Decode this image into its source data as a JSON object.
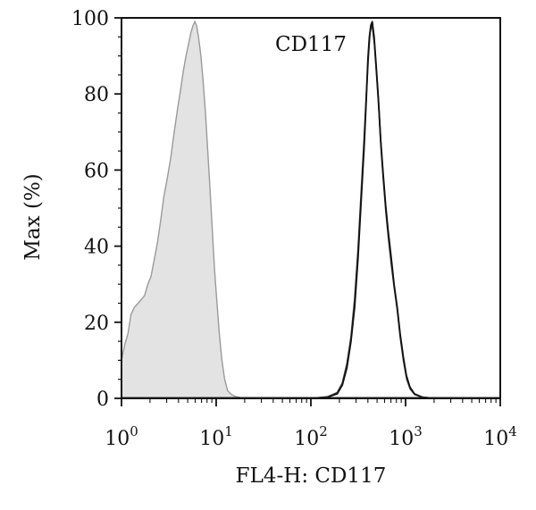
{
  "chart_data": {
    "type": "area",
    "title": "",
    "annotation": "CD117",
    "xlabel": "FL4-H: CD117",
    "ylabel": "Max (%)",
    "xscale": "log",
    "xlim": [
      1,
      10000
    ],
    "ylim": [
      0,
      100
    ],
    "x_ticks": [
      {
        "value": 1,
        "base": "10",
        "exp": "0"
      },
      {
        "value": 10,
        "base": "10",
        "exp": "1"
      },
      {
        "value": 100,
        "base": "10",
        "exp": "2"
      },
      {
        "value": 1000,
        "base": "10",
        "exp": "3"
      },
      {
        "value": 10000,
        "base": "10",
        "exp": "4"
      }
    ],
    "y_ticks": [
      "0",
      "20",
      "40",
      "60",
      "80",
      "100"
    ],
    "grid": false,
    "legend": "none",
    "series": [
      {
        "style": "filled",
        "fill": "#e3e3e3",
        "stroke": "#9a9a9a",
        "points": [
          [
            1.0,
            10
          ],
          [
            1.08,
            14
          ],
          [
            1.17,
            17
          ],
          [
            1.26,
            22
          ],
          [
            1.37,
            24
          ],
          [
            1.5,
            25
          ],
          [
            1.62,
            26
          ],
          [
            1.75,
            27
          ],
          [
            1.9,
            30
          ],
          [
            2.05,
            32
          ],
          [
            2.2,
            36
          ],
          [
            2.4,
            41
          ],
          [
            2.6,
            47
          ],
          [
            2.8,
            53
          ],
          [
            3.0,
            57
          ],
          [
            3.3,
            63
          ],
          [
            3.6,
            70
          ],
          [
            3.9,
            76
          ],
          [
            4.2,
            81
          ],
          [
            4.5,
            86
          ],
          [
            4.8,
            90
          ],
          [
            5.1,
            93
          ],
          [
            5.4,
            96
          ],
          [
            5.7,
            98
          ],
          [
            5.95,
            99
          ],
          [
            6.2,
            98
          ],
          [
            6.5,
            95
          ],
          [
            6.9,
            90
          ],
          [
            7.3,
            83
          ],
          [
            7.7,
            75
          ],
          [
            8.1,
            66
          ],
          [
            8.6,
            55
          ],
          [
            9.1,
            44
          ],
          [
            9.6,
            34
          ],
          [
            10.2,
            25
          ],
          [
            10.8,
            17
          ],
          [
            11.5,
            10
          ],
          [
            12.3,
            5
          ],
          [
            13.2,
            2
          ],
          [
            14.5,
            1
          ],
          [
            16.0,
            0.5
          ],
          [
            20.0,
            0
          ]
        ]
      },
      {
        "style": "line",
        "stroke": "#444444",
        "points": [
          [
            100,
            0
          ],
          [
            150,
            0.4
          ],
          [
            190,
            1.5
          ],
          [
            215,
            4
          ],
          [
            240,
            9
          ],
          [
            265,
            16
          ],
          [
            290,
            26
          ],
          [
            315,
            39
          ],
          [
            340,
            54
          ],
          [
            365,
            68
          ],
          [
            385,
            80
          ],
          [
            405,
            90
          ],
          [
            420,
            96
          ],
          [
            435,
            98
          ],
          [
            450,
            97
          ],
          [
            470,
            93
          ],
          [
            495,
            85
          ],
          [
            520,
            77
          ],
          [
            550,
            66
          ],
          [
            585,
            57
          ],
          [
            620,
            49
          ],
          [
            660,
            42
          ],
          [
            710,
            35
          ],
          [
            760,
            29
          ],
          [
            820,
            23
          ],
          [
            880,
            16
          ],
          [
            950,
            10
          ],
          [
            1030,
            5
          ],
          [
            1120,
            2.5
          ],
          [
            1250,
            1
          ],
          [
            1500,
            0.3
          ],
          [
            2000,
            0
          ]
        ]
      },
      {
        "style": "line",
        "stroke": "#111111",
        "points": [
          [
            100,
            0
          ],
          [
            150,
            0.3
          ],
          [
            190,
            1.2
          ],
          [
            215,
            3.5
          ],
          [
            240,
            8
          ],
          [
            265,
            15
          ],
          [
            290,
            24
          ],
          [
            315,
            37
          ],
          [
            340,
            52
          ],
          [
            365,
            66
          ],
          [
            385,
            79
          ],
          [
            400,
            89
          ],
          [
            415,
            95
          ],
          [
            430,
            98
          ],
          [
            445,
            99
          ],
          [
            465,
            95
          ],
          [
            490,
            87
          ],
          [
            515,
            79
          ],
          [
            545,
            68
          ],
          [
            580,
            59
          ],
          [
            615,
            51
          ],
          [
            655,
            44
          ],
          [
            705,
            37
          ],
          [
            755,
            30
          ],
          [
            815,
            24
          ],
          [
            875,
            17
          ],
          [
            945,
            11
          ],
          [
            1020,
            6
          ],
          [
            1110,
            3
          ],
          [
            1240,
            1.2
          ],
          [
            1500,
            0.3
          ],
          [
            2000,
            0
          ]
        ]
      }
    ]
  }
}
